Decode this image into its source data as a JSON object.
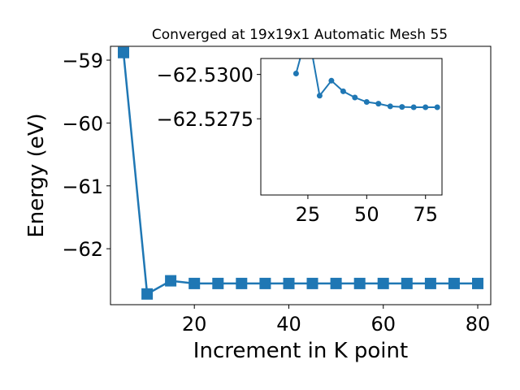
{
  "chart_data": [
    {
      "type": "line",
      "title": "Converged at 19x19x1 Automatic Mesh 55",
      "xlabel": "Increment in K point",
      "ylabel": "Energy (eV)",
      "xlim": [
        2.25,
        82.75
      ],
      "ylim": [
        -62.89,
        -58.78
      ],
      "xticks": [
        20,
        40,
        60,
        80
      ],
      "xtick_labels": [
        "20",
        "40",
        "60",
        "80"
      ],
      "yticks": [
        -62,
        -61,
        -60,
        -59
      ],
      "ytick_labels": [
        "−62",
        "−61",
        "−60",
        "−59"
      ],
      "grid": false,
      "marker": "square",
      "color": "#1f77b4",
      "series": [
        {
          "x": [
            5,
            10,
            15,
            20,
            25,
            30,
            35,
            40,
            45,
            50,
            55,
            60,
            65,
            70,
            75,
            80
          ],
          "y": [
            -58.88,
            -62.72,
            -62.51,
            -62.553,
            -62.553,
            -62.553,
            -62.553,
            -62.553,
            -62.553,
            -62.553,
            -62.553,
            -62.553,
            -62.553,
            -62.553,
            -62.553,
            -62.553
          ]
        }
      ]
    },
    {
      "type": "line",
      "title": "",
      "xlabel": "",
      "ylabel": "",
      "xlim": [
        5,
        82
      ],
      "ylim": [
        -62.5232,
        -62.5309
      ],
      "xticks": [
        25,
        50,
        75
      ],
      "xtick_labels": [
        "25",
        "50",
        "75"
      ],
      "yticks": [
        -62.53,
        -62.5275
      ],
      "ytick_labels": [
        "−62.5300",
        "−62.5275"
      ],
      "grid": false,
      "marker": "circle",
      "color": "#1f77b4",
      "series": [
        {
          "x": [
            20,
            25,
            30,
            35,
            40,
            45,
            50,
            55,
            60,
            65,
            70,
            75,
            80
          ],
          "y": [
            -62.53005,
            -62.5325,
            -62.5288,
            -62.52965,
            -62.52905,
            -62.5287,
            -62.52845,
            -62.52835,
            -62.5282,
            -62.52817,
            -62.52815,
            -62.52815,
            -62.52815
          ]
        }
      ]
    }
  ]
}
